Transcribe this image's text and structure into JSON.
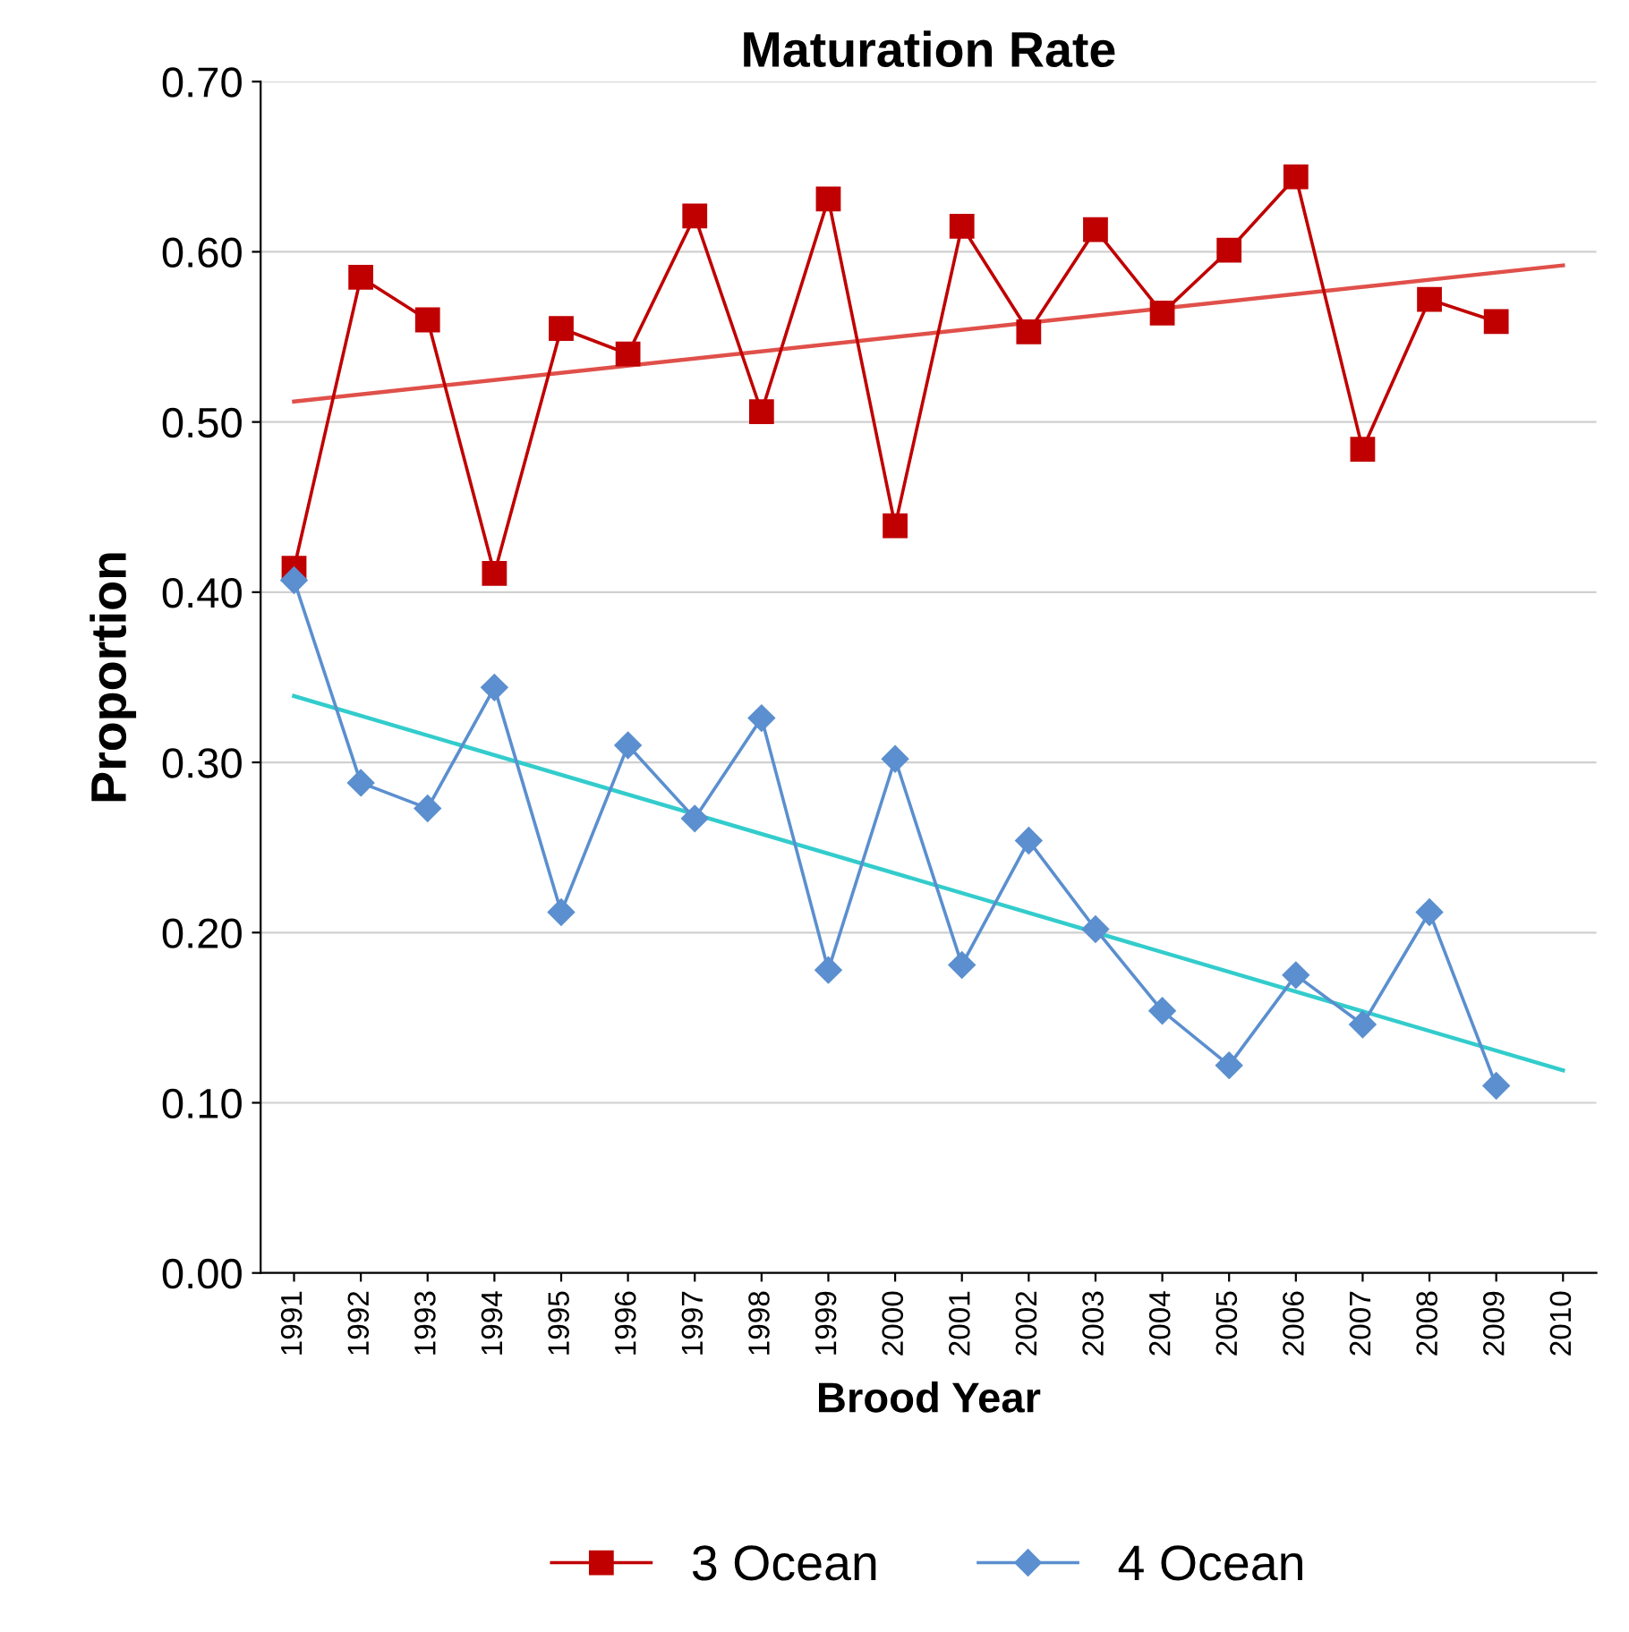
{
  "chart_data": {
    "type": "line",
    "title": "Maturation Rate",
    "xlabel": "Brood Year",
    "ylabel": "Proportion",
    "categories": [
      "1991",
      "1992",
      "1993",
      "1994",
      "1995",
      "1996",
      "1997",
      "1998",
      "1999",
      "2000",
      "2001",
      "2002",
      "2003",
      "2004",
      "2005",
      "2006",
      "2007",
      "2008",
      "2009",
      "2010"
    ],
    "series": [
      {
        "name": "3 Ocean",
        "color": "#c00000",
        "marker": "square",
        "values": [
          0.414,
          0.585,
          0.56,
          0.411,
          0.555,
          0.54,
          0.621,
          0.506,
          0.631,
          0.439,
          0.615,
          0.553,
          0.613,
          0.564,
          0.601,
          0.644,
          0.484,
          0.572,
          0.559,
          null
        ]
      },
      {
        "name": "4 Ocean",
        "color": "#5b8fcf",
        "marker": "diamond",
        "values": [
          0.407,
          0.288,
          0.273,
          0.344,
          0.212,
          0.31,
          0.267,
          0.326,
          0.178,
          0.302,
          0.181,
          0.254,
          0.202,
          0.154,
          0.122,
          0.175,
          0.146,
          0.212,
          0.11,
          null
        ]
      },
      {
        "color": "#e0504a",
        "marker": "none",
        "values": [
          0.512,
          null,
          null,
          null,
          null,
          null,
          null,
          null,
          null,
          null,
          null,
          null,
          null,
          null,
          null,
          null,
          null,
          null,
          null,
          0.592
        ]
      },
      {
        "color": "#33cccc",
        "marker": "none",
        "values": [
          0.339,
          null,
          null,
          null,
          null,
          null,
          null,
          null,
          null,
          null,
          null,
          null,
          null,
          null,
          null,
          null,
          null,
          null,
          null,
          0.119
        ]
      }
    ],
    "ylim": [
      0,
      0.7
    ],
    "yticks": [
      {
        "value": 0,
        "label": "0.00"
      },
      {
        "value": 0.1,
        "label": "0.10"
      },
      {
        "value": 0.2,
        "label": "0.20"
      },
      {
        "value": 0.3,
        "label": "0.30"
      },
      {
        "value": 0.4,
        "label": "0.40"
      },
      {
        "value": 0.5,
        "label": "0.50"
      },
      {
        "value": 0.6,
        "label": "0.60"
      },
      {
        "value": 0.7,
        "label": "0.70"
      }
    ],
    "grid": "y",
    "legend": "bottom"
  }
}
